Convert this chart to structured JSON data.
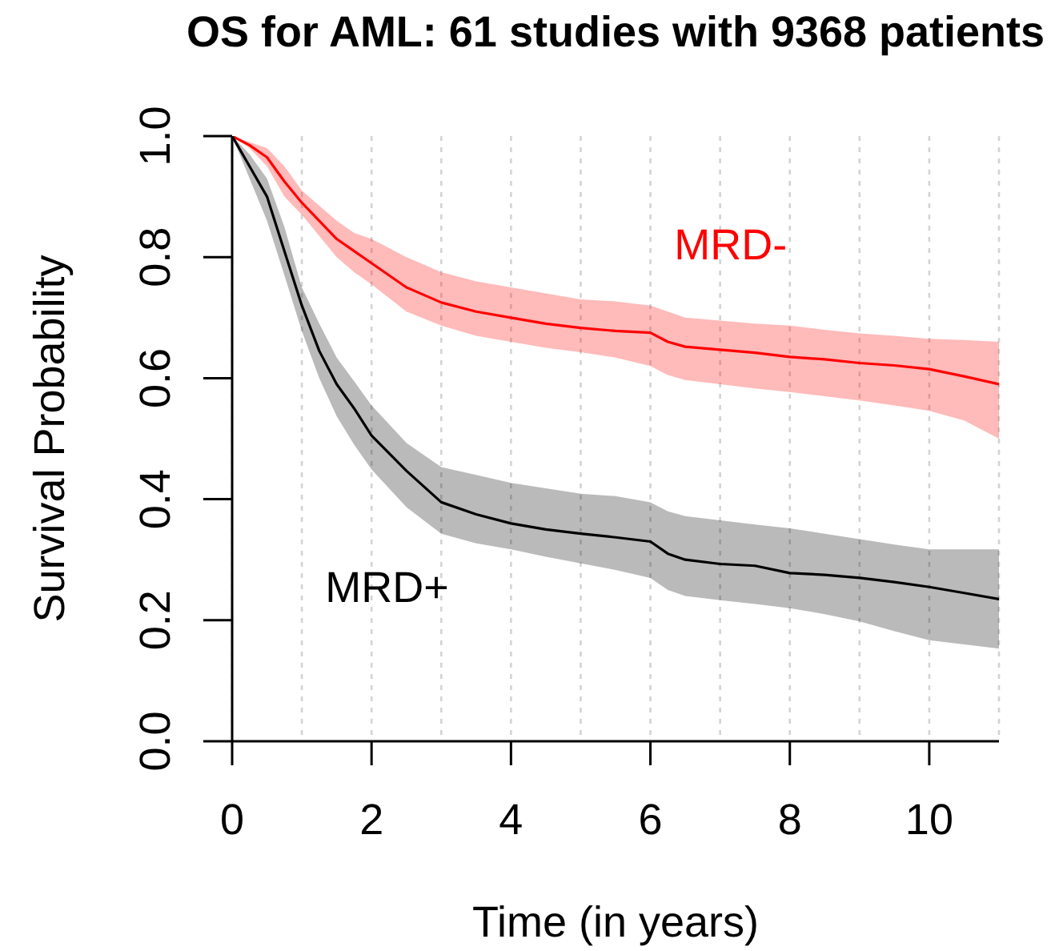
{
  "chart_data": {
    "type": "line",
    "title": "OS for AML: 61 studies with 9368 patients",
    "xlabel": "Time (in years)",
    "ylabel": "Survival Probability",
    "x": [
      0,
      0.25,
      0.5,
      0.75,
      1,
      1.25,
      1.5,
      1.75,
      2,
      2.5,
      3,
      3.5,
      4,
      4.5,
      5,
      5.5,
      6,
      6.25,
      6.5,
      7,
      7.5,
      8,
      8.5,
      9,
      9.5,
      10,
      10.5,
      11
    ],
    "series": [
      {
        "name": "MRD-",
        "color": "#ff0000",
        "values": [
          1.0,
          0.985,
          0.965,
          0.925,
          0.89,
          0.86,
          0.83,
          0.81,
          0.79,
          0.75,
          0.725,
          0.71,
          0.7,
          0.69,
          0.683,
          0.678,
          0.675,
          0.66,
          0.652,
          0.647,
          0.642,
          0.635,
          0.631,
          0.625,
          0.621,
          0.615,
          0.603,
          0.59
        ],
        "lower": [
          1.0,
          0.98,
          0.95,
          0.9,
          0.87,
          0.835,
          0.8,
          0.775,
          0.755,
          0.71,
          0.687,
          0.67,
          0.66,
          0.65,
          0.643,
          0.634,
          0.62,
          0.605,
          0.597,
          0.59,
          0.583,
          0.577,
          0.57,
          0.563,
          0.555,
          0.546,
          0.53,
          0.5
        ],
        "upper": [
          1.0,
          0.99,
          0.98,
          0.95,
          0.91,
          0.885,
          0.86,
          0.84,
          0.83,
          0.8,
          0.775,
          0.76,
          0.75,
          0.74,
          0.73,
          0.727,
          0.72,
          0.71,
          0.7,
          0.695,
          0.69,
          0.687,
          0.68,
          0.674,
          0.67,
          0.665,
          0.663,
          0.66
        ]
      },
      {
        "name": "MRD+",
        "color": "#000000",
        "values": [
          1.0,
          0.95,
          0.9,
          0.81,
          0.72,
          0.645,
          0.59,
          0.55,
          0.505,
          0.447,
          0.395,
          0.375,
          0.36,
          0.35,
          0.343,
          0.337,
          0.33,
          0.31,
          0.3,
          0.293,
          0.29,
          0.278,
          0.275,
          0.27,
          0.263,
          0.255,
          0.245,
          0.235
        ],
        "lower": [
          1.0,
          0.93,
          0.86,
          0.77,
          0.678,
          0.6,
          0.537,
          0.49,
          0.449,
          0.387,
          0.343,
          0.327,
          0.317,
          0.305,
          0.294,
          0.283,
          0.27,
          0.25,
          0.24,
          0.233,
          0.227,
          0.22,
          0.21,
          0.198,
          0.182,
          0.167,
          0.16,
          0.153
        ],
        "upper": [
          1.0,
          0.97,
          0.93,
          0.85,
          0.75,
          0.69,
          0.634,
          0.595,
          0.555,
          0.493,
          0.453,
          0.44,
          0.427,
          0.418,
          0.409,
          0.405,
          0.395,
          0.38,
          0.372,
          0.365,
          0.358,
          0.352,
          0.343,
          0.334,
          0.325,
          0.317,
          0.317,
          0.317
        ]
      }
    ],
    "xlim": [
      0,
      11
    ],
    "ylim": [
      0,
      1
    ],
    "xticks": [
      0,
      {
        "value": 1,
        "label": null
      },
      2,
      {
        "value": 3,
        "label": null
      },
      4,
      {
        "value": 5,
        "label": null
      },
      6,
      {
        "value": 7,
        "label": null
      },
      8,
      {
        "value": 9,
        "label": null
      },
      10
    ],
    "yticks": [
      {
        "value": 0,
        "label": "0.0"
      },
      0.2,
      0.4,
      0.6,
      0.8,
      {
        "value": 1,
        "label": "1.0"
      }
    ],
    "grid": "x",
    "marker": "none",
    "line_style": "solid"
  }
}
